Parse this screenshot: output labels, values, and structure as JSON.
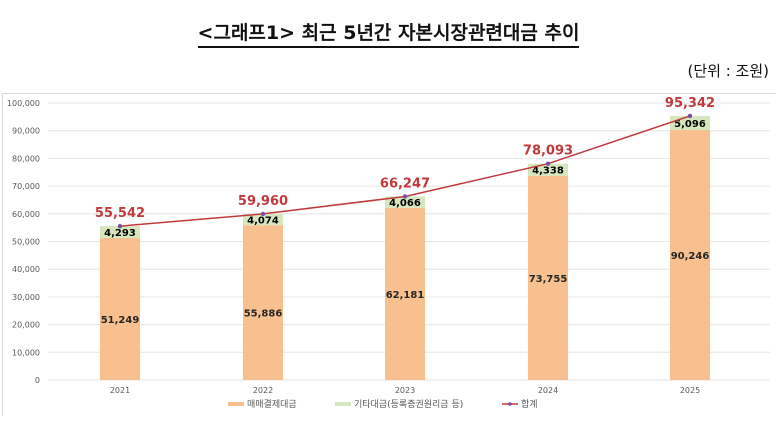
{
  "title": "<그래프1> 최근 5년간 자본시장관련대금 추이",
  "unit": "(단위 : 조원)",
  "chart_data": {
    "type": "bar",
    "stacked": true,
    "categories": [
      "2021",
      "2022",
      "2023",
      "2024",
      "2025"
    ],
    "series": [
      {
        "name": "매매결제대금",
        "type": "bar",
        "color": "#f9c08f",
        "values": [
          51249,
          55886,
          62181,
          73755,
          90246
        ]
      },
      {
        "name": "기타대금(등록증권원리금 등)",
        "type": "bar",
        "color": "#d6e6bf",
        "values": [
          4293,
          4074,
          4066,
          4338,
          5096
        ]
      },
      {
        "name": "합계",
        "type": "line",
        "color": "#c0393b",
        "marker_color": "#7a4fa0",
        "values": [
          55542,
          59960,
          66247,
          78093,
          95342
        ]
      }
    ],
    "ylim": [
      0,
      100000
    ],
    "yticks": [
      "0",
      "10,000",
      "20,000",
      "30,000",
      "40,000",
      "50,000",
      "60,000",
      "70,000",
      "80,000",
      "90,000",
      "100,000"
    ],
    "grid": true,
    "legend": "bottom",
    "data_labels": {
      "bar0": [
        "51,249",
        "55,886",
        "62,181",
        "73,755",
        "90,246"
      ],
      "bar1": [
        "4,293",
        "4,074",
        "4,066",
        "4,338",
        "5,096"
      ],
      "total": [
        "55,542",
        "59,960",
        "66,247",
        "78,093",
        "95,342"
      ]
    }
  }
}
